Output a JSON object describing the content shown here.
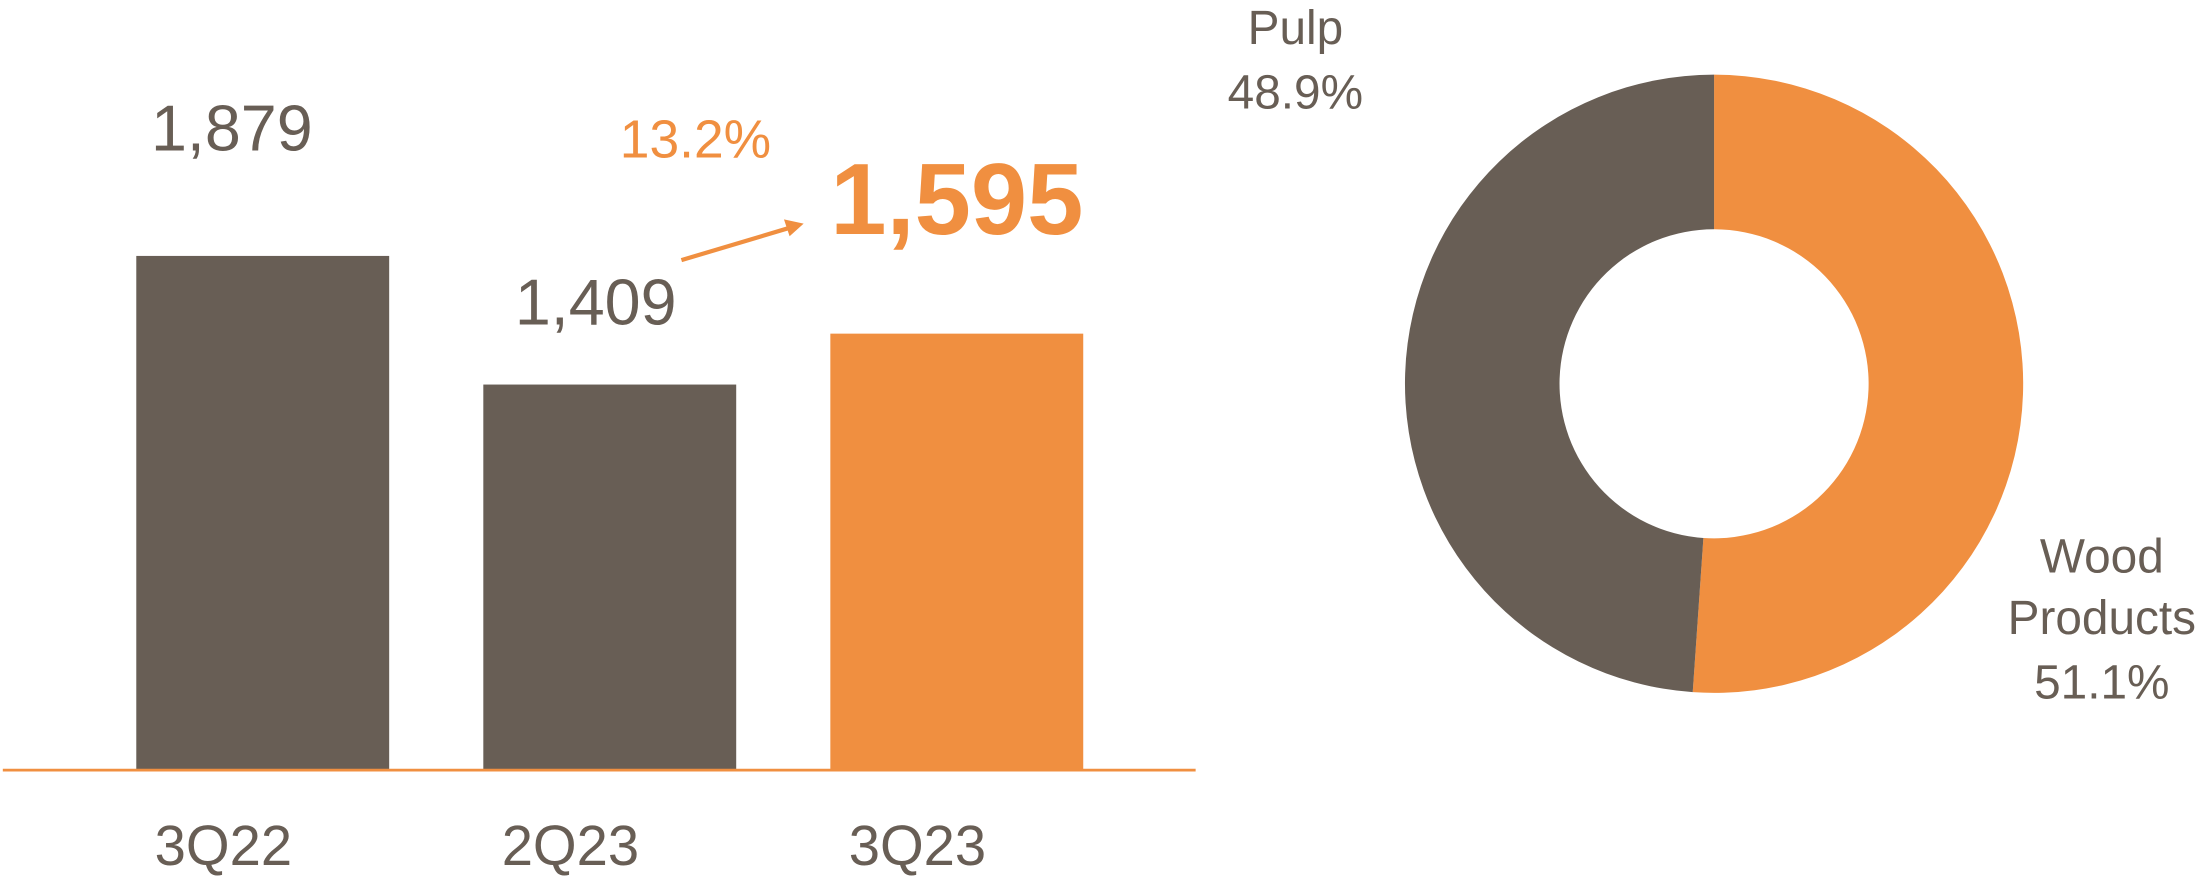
{
  "chart_data": [
    {
      "type": "bar",
      "categories": [
        "3Q22",
        "2Q23",
        "3Q23"
      ],
      "values": [
        1879,
        1409,
        1595
      ],
      "value_labels": [
        "1,879",
        "1,409",
        "1,595"
      ],
      "colors": [
        "#685e55",
        "#685e55",
        "#f08f40"
      ],
      "annotation": "13.2%"
    },
    {
      "type": "pie",
      "categories": [
        "Wood Products",
        "Pulp"
      ],
      "values": [
        51.1,
        48.9
      ],
      "value_labels": [
        "51.1%",
        "48.9%"
      ],
      "colors": [
        "#f08f40",
        "#685e55"
      ]
    }
  ]
}
